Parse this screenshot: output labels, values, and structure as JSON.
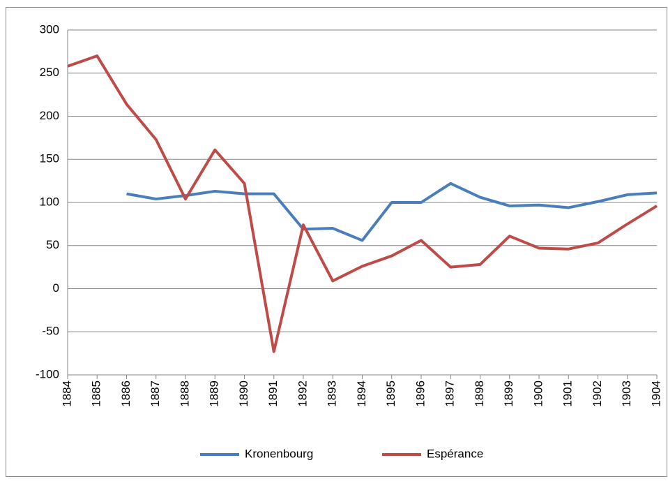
{
  "chart_data": {
    "type": "line",
    "categories": [
      "1884",
      "1885",
      "1886",
      "1887",
      "1888",
      "1889",
      "1890",
      "1891",
      "1892",
      "1893",
      "1894",
      "1895",
      "1896",
      "1897",
      "1898",
      "1899",
      "1900",
      "1901",
      "1902",
      "1903",
      "1904"
    ],
    "series": [
      {
        "name": "Kronenbourg",
        "color": "#4a7ebb",
        "values": [
          null,
          null,
          110,
          104,
          108,
          113,
          110,
          110,
          69,
          70,
          56,
          100,
          100,
          122,
          106,
          96,
          97,
          94,
          101,
          109,
          111
        ]
      },
      {
        "name": "Espérance",
        "color": "#be4b48",
        "values": [
          258,
          270,
          214,
          173,
          104,
          161,
          122,
          -73,
          74,
          9,
          26,
          38,
          56,
          25,
          28,
          61,
          47,
          46,
          53,
          75,
          96
        ]
      }
    ],
    "ylim": [
      -100,
      300
    ],
    "yticks": [
      -100,
      -50,
      0,
      50,
      100,
      150,
      200,
      250,
      300
    ],
    "grid": true,
    "legend": "bottom"
  }
}
